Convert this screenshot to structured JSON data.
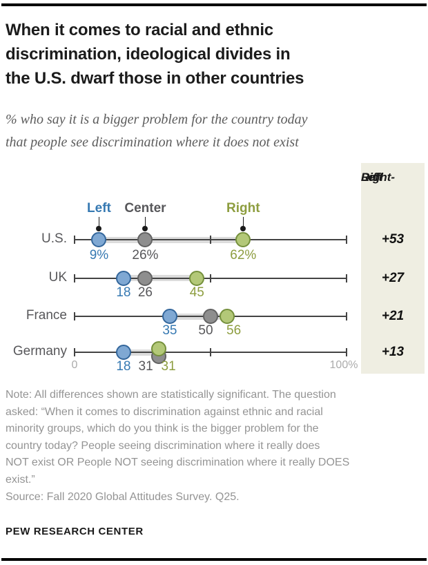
{
  "header": {
    "title_lines": [
      "When it comes to racial and ethnic",
      "discrimination, ideological divides in",
      "the U.S. dwarf those in other countries"
    ],
    "subtitle_lines": [
      "% who say it is a bigger problem for the country today",
      "that people see discrimination where it does not exist"
    ]
  },
  "chart_data": {
    "type": "scatter",
    "variant": "diverging-dot-plot",
    "x_range": [
      0,
      100
    ],
    "x_tick_labels": [
      "0",
      "100%"
    ],
    "mid_tick": 50,
    "legend": [
      {
        "key": "left",
        "label": "Left"
      },
      {
        "key": "center",
        "label": "Center"
      },
      {
        "key": "right",
        "label": "Right"
      }
    ],
    "diff_header_lines": [
      "Right-",
      "Left",
      "Diff"
    ],
    "rows": [
      {
        "country": "U.S.",
        "values": {
          "left": 9,
          "center": 26,
          "right": 62
        },
        "display": {
          "left": "9%",
          "center": "26%",
          "right": "62%"
        },
        "diff": "+53",
        "layout": {
          "center_label_dx": 0,
          "right_label_dx": 0,
          "center_dot_dy": 0,
          "right_dot_dy": 0
        }
      },
      {
        "country": "UK",
        "values": {
          "left": 18,
          "center": 26,
          "right": 45
        },
        "display": {
          "left": "18",
          "center": "26",
          "right": "45"
        },
        "diff": "+27",
        "layout": {
          "center_label_dx": 0,
          "right_label_dx": 0,
          "center_dot_dy": 0,
          "right_dot_dy": 0
        }
      },
      {
        "country": "France",
        "values": {
          "left": 35,
          "center": 50,
          "right": 56
        },
        "display": {
          "left": "35",
          "center": "50",
          "right": "56"
        },
        "diff": "+21",
        "layout": {
          "center_label_dx": -7,
          "right_label_dx": 10,
          "center_dot_dy": 0,
          "right_dot_dy": 0
        }
      },
      {
        "country": "Germany",
        "values": {
          "left": 18,
          "center": 31,
          "right": 31
        },
        "display": {
          "left": "18",
          "center": "31",
          "right": "31"
        },
        "diff": "+13",
        "layout": {
          "center_label_dx": -19,
          "right_label_dx": 14,
          "center_dot_dy": 6,
          "right_dot_dy": -5
        }
      }
    ]
  },
  "colors": {
    "left": {
      "dot_fill": "#7fa8d3",
      "dot_stroke": "#33669b",
      "text": "#3679b2"
    },
    "center": {
      "dot_fill": "#8e8e8e",
      "dot_stroke": "#626262",
      "text": "#57575a"
    },
    "right": {
      "dot_fill": "#b3c878",
      "dot_stroke": "#75903c",
      "text": "#8d9d3f"
    },
    "band": "#dcdcdc",
    "axis": "#434343",
    "leader": "#1a1a1a",
    "diff_box_bg": "#efeee2",
    "axis_end_labels": "#ababab"
  },
  "footer": {
    "note_lines": [
      "Note: All differences shown are statistically significant. The question",
      "asked: “When it comes to discrimination against ethnic and racial",
      "minority groups, which do you think is the bigger problem for the",
      "country today? People seeing discrimination where it really does",
      "NOT exist OR People NOT seeing discrimination where it really DOES",
      "exist.”"
    ],
    "source": "Source: Fall 2020 Global Attitudes Survey. Q25.",
    "brand": "PEW RESEARCH CENTER"
  }
}
